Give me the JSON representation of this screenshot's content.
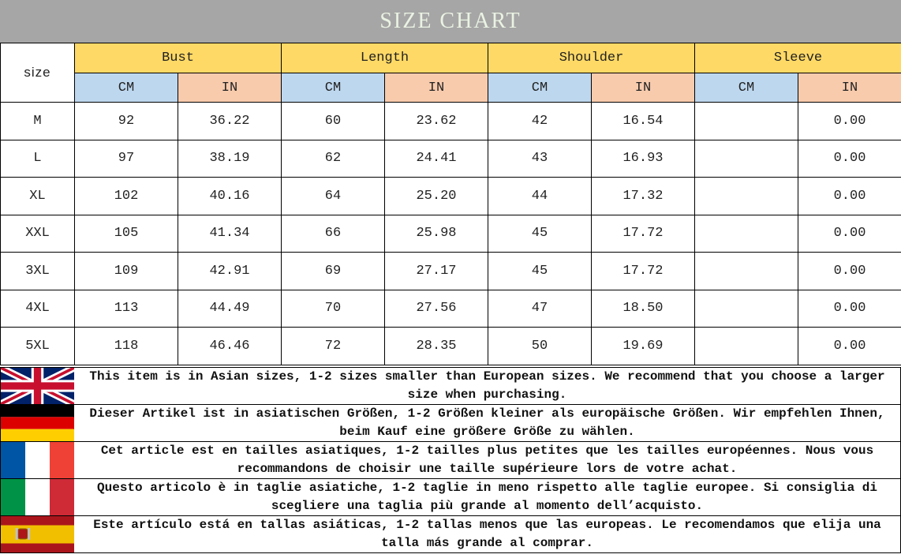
{
  "title": "SIZE CHART",
  "header": {
    "size_label": "size",
    "groups": [
      "Bust",
      "Length",
      "Shoulder",
      "Sleeve"
    ],
    "unit_cm": "CM",
    "unit_in": "IN"
  },
  "rows": [
    {
      "size": "M",
      "bust_cm": "92",
      "bust_in": "36.22",
      "length_cm": "60",
      "length_in": "23.62",
      "shoulder_cm": "42",
      "shoulder_in": "16.54",
      "sleeve_cm": "",
      "sleeve_in": "0.00"
    },
    {
      "size": "L",
      "bust_cm": "97",
      "bust_in": "38.19",
      "length_cm": "62",
      "length_in": "24.41",
      "shoulder_cm": "43",
      "shoulder_in": "16.93",
      "sleeve_cm": "",
      "sleeve_in": "0.00"
    },
    {
      "size": "XL",
      "bust_cm": "102",
      "bust_in": "40.16",
      "length_cm": "64",
      "length_in": "25.20",
      "shoulder_cm": "44",
      "shoulder_in": "17.32",
      "sleeve_cm": "",
      "sleeve_in": "0.00"
    },
    {
      "size": "XXL",
      "bust_cm": "105",
      "bust_in": "41.34",
      "length_cm": "66",
      "length_in": "25.98",
      "shoulder_cm": "45",
      "shoulder_in": "17.72",
      "sleeve_cm": "",
      "sleeve_in": "0.00"
    },
    {
      "size": "3XL",
      "bust_cm": "109",
      "bust_in": "42.91",
      "length_cm": "69",
      "length_in": "27.17",
      "shoulder_cm": "45",
      "shoulder_in": "17.72",
      "sleeve_cm": "",
      "sleeve_in": "0.00"
    },
    {
      "size": "4XL",
      "bust_cm": "113",
      "bust_in": "44.49",
      "length_cm": "70",
      "length_in": "27.56",
      "shoulder_cm": "47",
      "shoulder_in": "18.50",
      "sleeve_cm": "",
      "sleeve_in": "0.00"
    },
    {
      "size": "5XL",
      "bust_cm": "118",
      "bust_in": "46.46",
      "length_cm": "72",
      "length_in": "28.35",
      "shoulder_cm": "50",
      "shoulder_in": "19.69",
      "sleeve_cm": "",
      "sleeve_in": "0.00"
    }
  ],
  "notes": [
    {
      "flag": "uk-flag-icon",
      "text": "This item is in Asian sizes, 1-2 sizes smaller than European sizes. We recommend that you choose a larger size when purchasing."
    },
    {
      "flag": "germany-flag-icon",
      "text": "Dieser Artikel ist in asiatischen Größen, 1-2 Größen kleiner als europäische Größen. Wir empfehlen Ihnen, beim Kauf eine größere Größe zu wählen."
    },
    {
      "flag": "france-flag-icon",
      "text": "Cet article est en tailles asiatiques, 1-2 tailles plus petites que les tailles européennes. Nous vous recommandons de choisir une taille supérieure lors de votre achat."
    },
    {
      "flag": "italy-flag-icon",
      "text": "Questo articolo è in taglie asiatiche, 1-2 taglie in meno rispetto alle taglie europee. Si consiglia di scegliere una taglia più grande al momento dell’acquisto."
    },
    {
      "flag": "spain-flag-icon",
      "text": "Este artículo está en tallas asiáticas, 1-2 tallas menos que las europeas. Le recomendamos que elija una talla más grande al comprar."
    }
  ],
  "colors": {
    "title_bg": "#a6a6a6",
    "group_header": "#ffd966",
    "cm_header": "#bdd7ee",
    "in_header": "#f8cbad"
  }
}
